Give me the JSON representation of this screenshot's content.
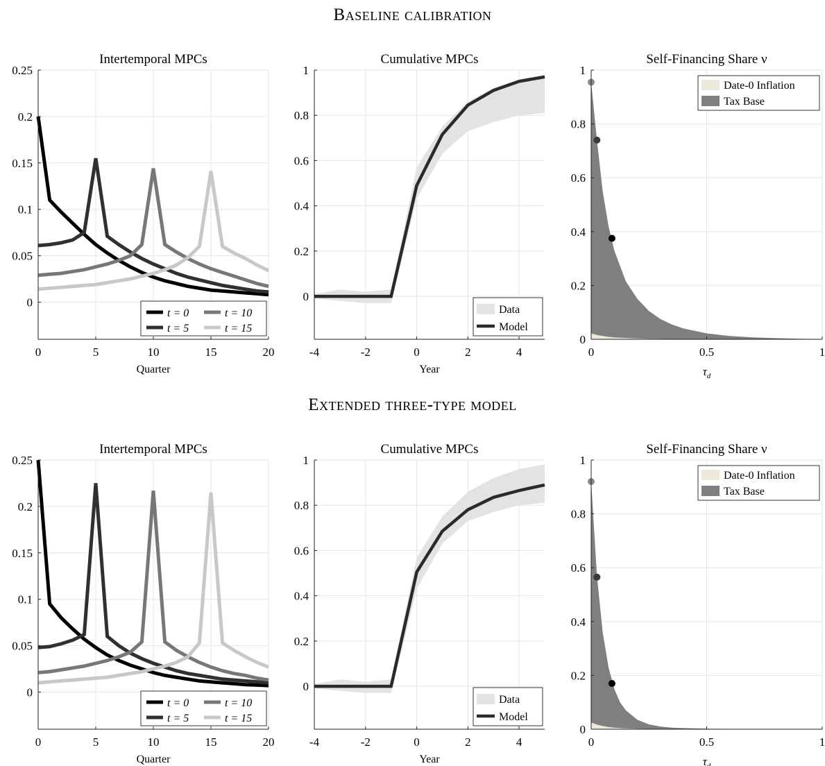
{
  "sections": [
    {
      "title": "Baseline calibration"
    },
    {
      "title": "Extended three-type model"
    }
  ],
  "colors": {
    "t0": "#000000",
    "t5": "#303030",
    "t10": "#777777",
    "t15": "#c8c8c8",
    "data_band": "#e3e3e3",
    "model_line": "#2a2a2a",
    "tax_base": "#7f7f7f",
    "inflation": "#efe8dc",
    "dot_1": "#8a8a8a",
    "dot_2": "#3a3a3a",
    "dot_3": "#000000"
  },
  "chart_data": [
    {
      "type": "line",
      "panel": "baseline-intertemporal",
      "title": "Intertemporal MPCs",
      "xlabel": "Quarter",
      "ylabel": "",
      "xlim": [
        0,
        20
      ],
      "ylim": [
        -0.04,
        0.25
      ],
      "xticks": [
        "0",
        "5",
        "10",
        "15",
        "20"
      ],
      "yticks": [
        "0",
        "0.05",
        "0.1",
        "0.15",
        "0.2",
        "0.25"
      ],
      "legend": "bottom-right",
      "legend_labels": [
        "t = 0",
        "t = 5",
        "t = 10",
        "t = 15"
      ],
      "x": [
        0,
        1,
        2,
        3,
        4,
        5,
        6,
        7,
        8,
        9,
        10,
        11,
        12,
        13,
        14,
        15,
        16,
        17,
        18,
        19,
        20
      ],
      "series": [
        {
          "name": "t = 0",
          "values": [
            0.2,
            0.11,
            0.097,
            0.085,
            0.073,
            0.062,
            0.053,
            0.045,
            0.038,
            0.032,
            0.027,
            0.023,
            0.02,
            0.017,
            0.015,
            0.013,
            0.012,
            0.011,
            0.01,
            0.009,
            0.008
          ]
        },
        {
          "name": "t = 5",
          "values": [
            0.061,
            0.062,
            0.064,
            0.067,
            0.075,
            0.155,
            0.071,
            0.062,
            0.054,
            0.047,
            0.041,
            0.036,
            0.031,
            0.027,
            0.024,
            0.021,
            0.018,
            0.016,
            0.014,
            0.012,
            0.011
          ]
        },
        {
          "name": "t = 10",
          "values": [
            0.029,
            0.03,
            0.031,
            0.033,
            0.035,
            0.038,
            0.041,
            0.045,
            0.05,
            0.062,
            0.144,
            0.062,
            0.054,
            0.047,
            0.041,
            0.036,
            0.032,
            0.028,
            0.024,
            0.02,
            0.017
          ]
        },
        {
          "name": "t = 15",
          "values": [
            0.014,
            0.015,
            0.016,
            0.017,
            0.018,
            0.019,
            0.021,
            0.023,
            0.025,
            0.028,
            0.031,
            0.035,
            0.04,
            0.048,
            0.06,
            0.141,
            0.06,
            0.053,
            0.047,
            0.04,
            0.034
          ]
        }
      ]
    },
    {
      "type": "area",
      "panel": "baseline-cumulative",
      "title": "Cumulative MPCs",
      "xlabel": "Year",
      "ylabel": "",
      "xlim": [
        -4,
        5
      ],
      "ylim": [
        -0.19,
        1.0
      ],
      "xticks": [
        "-4",
        "-2",
        "0",
        "2",
        "4"
      ],
      "yticks": [
        "0",
        "0.2",
        "0.4",
        "0.6",
        "0.8",
        "1"
      ],
      "legend": "bottom-right",
      "legend_labels": [
        "Data",
        "Model"
      ],
      "x": [
        -4,
        -3,
        -2,
        -1,
        0,
        1,
        2,
        3,
        4,
        5
      ],
      "series": [
        {
          "name": "Data",
          "lower": [
            -0.01,
            -0.02,
            -0.03,
            -0.03,
            0.43,
            0.63,
            0.73,
            0.77,
            0.8,
            0.81
          ],
          "upper": [
            0.01,
            0.03,
            0.02,
            0.03,
            0.57,
            0.75,
            0.86,
            0.92,
            0.96,
            0.98
          ]
        },
        {
          "name": "Model",
          "values": [
            0,
            0,
            0,
            0,
            0.49,
            0.715,
            0.845,
            0.91,
            0.95,
            0.97
          ]
        }
      ]
    },
    {
      "type": "area",
      "panel": "baseline-self-financing",
      "title": "Self-Financing Share ν",
      "xlabel": "τd",
      "ylabel": "",
      "xlim": [
        0,
        1
      ],
      "ylim": [
        0,
        1
      ],
      "xticks": [
        "0",
        "0.5",
        "1"
      ],
      "yticks": [
        "0",
        "0.2",
        "0.4",
        "0.6",
        "0.8",
        "1"
      ],
      "legend": "top-right",
      "legend_labels": [
        "Date-0 Inflation",
        "Tax Base"
      ],
      "x": [
        0,
        0.025,
        0.05,
        0.075,
        0.1,
        0.15,
        0.2,
        0.25,
        0.3,
        0.35,
        0.4,
        0.5,
        0.6,
        0.7,
        0.8,
        0.9,
        1.0
      ],
      "series": [
        {
          "name": "Tax Base",
          "values": [
            0.955,
            0.74,
            0.55,
            0.42,
            0.33,
            0.215,
            0.15,
            0.105,
            0.075,
            0.055,
            0.04,
            0.022,
            0.012,
            0.007,
            0.004,
            0.002,
            0.001
          ]
        },
        {
          "name": "Date-0 Inflation",
          "values": [
            0.022,
            0.016,
            0.012,
            0.009,
            0.007,
            0.005,
            0.003,
            0.002,
            0.0015,
            0.001,
            0.0008,
            0.0005,
            0.0003,
            0.0002,
            0.0001,
            0.0001,
            0.0
          ]
        }
      ],
      "points": [
        {
          "x": 0.0,
          "y": 0.955
        },
        {
          "x": 0.025,
          "y": 0.74
        },
        {
          "x": 0.09,
          "y": 0.375
        }
      ]
    },
    {
      "type": "line",
      "panel": "extended-intertemporal",
      "title": "Intertemporal MPCs",
      "xlabel": "Quarter",
      "ylabel": "",
      "xlim": [
        0,
        20
      ],
      "ylim": [
        -0.04,
        0.25
      ],
      "xticks": [
        "0",
        "5",
        "10",
        "15",
        "20"
      ],
      "yticks": [
        "0",
        "0.05",
        "0.1",
        "0.15",
        "0.2",
        "0.25"
      ],
      "legend": "bottom-right",
      "legend_labels": [
        "t = 0",
        "t = 5",
        "t = 10",
        "t = 15"
      ],
      "x": [
        0,
        1,
        2,
        3,
        4,
        5,
        6,
        7,
        8,
        9,
        10,
        11,
        12,
        13,
        14,
        15,
        16,
        17,
        18,
        19,
        20
      ],
      "series": [
        {
          "name": "t = 0",
          "values": [
            0.25,
            0.095,
            0.08,
            0.068,
            0.057,
            0.048,
            0.04,
            0.034,
            0.029,
            0.025,
            0.021,
            0.018,
            0.016,
            0.014,
            0.012,
            0.011,
            0.01,
            0.009,
            0.008,
            0.0075,
            0.007
          ]
        },
        {
          "name": "t = 5",
          "values": [
            0.048,
            0.049,
            0.052,
            0.056,
            0.062,
            0.225,
            0.06,
            0.05,
            0.042,
            0.036,
            0.031,
            0.027,
            0.023,
            0.02,
            0.018,
            0.016,
            0.014,
            0.013,
            0.012,
            0.011,
            0.01
          ]
        },
        {
          "name": "t = 10",
          "values": [
            0.021,
            0.022,
            0.024,
            0.026,
            0.028,
            0.031,
            0.034,
            0.038,
            0.043,
            0.054,
            0.217,
            0.054,
            0.045,
            0.038,
            0.032,
            0.027,
            0.023,
            0.02,
            0.018,
            0.015,
            0.013
          ]
        },
        {
          "name": "t = 15",
          "values": [
            0.01,
            0.011,
            0.012,
            0.013,
            0.014,
            0.015,
            0.016,
            0.018,
            0.02,
            0.022,
            0.025,
            0.028,
            0.032,
            0.038,
            0.053,
            0.215,
            0.053,
            0.045,
            0.038,
            0.032,
            0.027
          ]
        }
      ]
    },
    {
      "type": "area",
      "panel": "extended-cumulative",
      "title": "Cumulative MPCs",
      "xlabel": "Year",
      "ylabel": "",
      "xlim": [
        -4,
        5
      ],
      "ylim": [
        -0.19,
        1.0
      ],
      "xticks": [
        "-4",
        "-2",
        "0",
        "2",
        "4"
      ],
      "yticks": [
        "0",
        "0.2",
        "0.4",
        "0.6",
        "0.8",
        "1"
      ],
      "legend": "bottom-right",
      "legend_labels": [
        "Data",
        "Model"
      ],
      "x": [
        -4,
        -3,
        -2,
        -1,
        0,
        1,
        2,
        3,
        4,
        5
      ],
      "series": [
        {
          "name": "Data",
          "lower": [
            -0.01,
            -0.02,
            -0.03,
            -0.03,
            0.43,
            0.63,
            0.73,
            0.77,
            0.8,
            0.81
          ],
          "upper": [
            0.01,
            0.03,
            0.02,
            0.03,
            0.57,
            0.75,
            0.86,
            0.92,
            0.96,
            0.98
          ]
        },
        {
          "name": "Model",
          "values": [
            0,
            0,
            0,
            0,
            0.505,
            0.685,
            0.78,
            0.835,
            0.865,
            0.89
          ]
        }
      ]
    },
    {
      "type": "area",
      "panel": "extended-self-financing",
      "title": "Self-Financing Share ν",
      "xlabel": "τd",
      "ylabel": "",
      "xlim": [
        0,
        1
      ],
      "ylim": [
        0,
        1
      ],
      "xticks": [
        "0",
        "0.5",
        "1"
      ],
      "yticks": [
        "0",
        "0.2",
        "0.4",
        "0.6",
        "0.8",
        "1"
      ],
      "legend": "top-right",
      "legend_labels": [
        "Date-0 Inflation",
        "Tax Base"
      ],
      "x": [
        0,
        0.025,
        0.05,
        0.075,
        0.1,
        0.125,
        0.15,
        0.2,
        0.25,
        0.3,
        0.35,
        0.4,
        0.5,
        0.6,
        0.7,
        0.8,
        0.9,
        1.0
      ],
      "series": [
        {
          "name": "Tax Base",
          "values": [
            0.92,
            0.57,
            0.36,
            0.23,
            0.15,
            0.1,
            0.07,
            0.035,
            0.018,
            0.01,
            0.006,
            0.004,
            0.002,
            0.001,
            0.0006,
            0.0003,
            0.0002,
            0.0001
          ]
        },
        {
          "name": "Date-0 Inflation",
          "values": [
            0.025,
            0.017,
            0.012,
            0.008,
            0.006,
            0.004,
            0.003,
            0.002,
            0.001,
            0.0007,
            0.0004,
            0.0003,
            0.0002,
            0.0001,
            0.0001,
            0.0,
            0.0,
            0.0
          ]
        }
      ],
      "points": [
        {
          "x": 0.0,
          "y": 0.92
        },
        {
          "x": 0.025,
          "y": 0.565
        },
        {
          "x": 0.09,
          "y": 0.17
        }
      ]
    }
  ]
}
